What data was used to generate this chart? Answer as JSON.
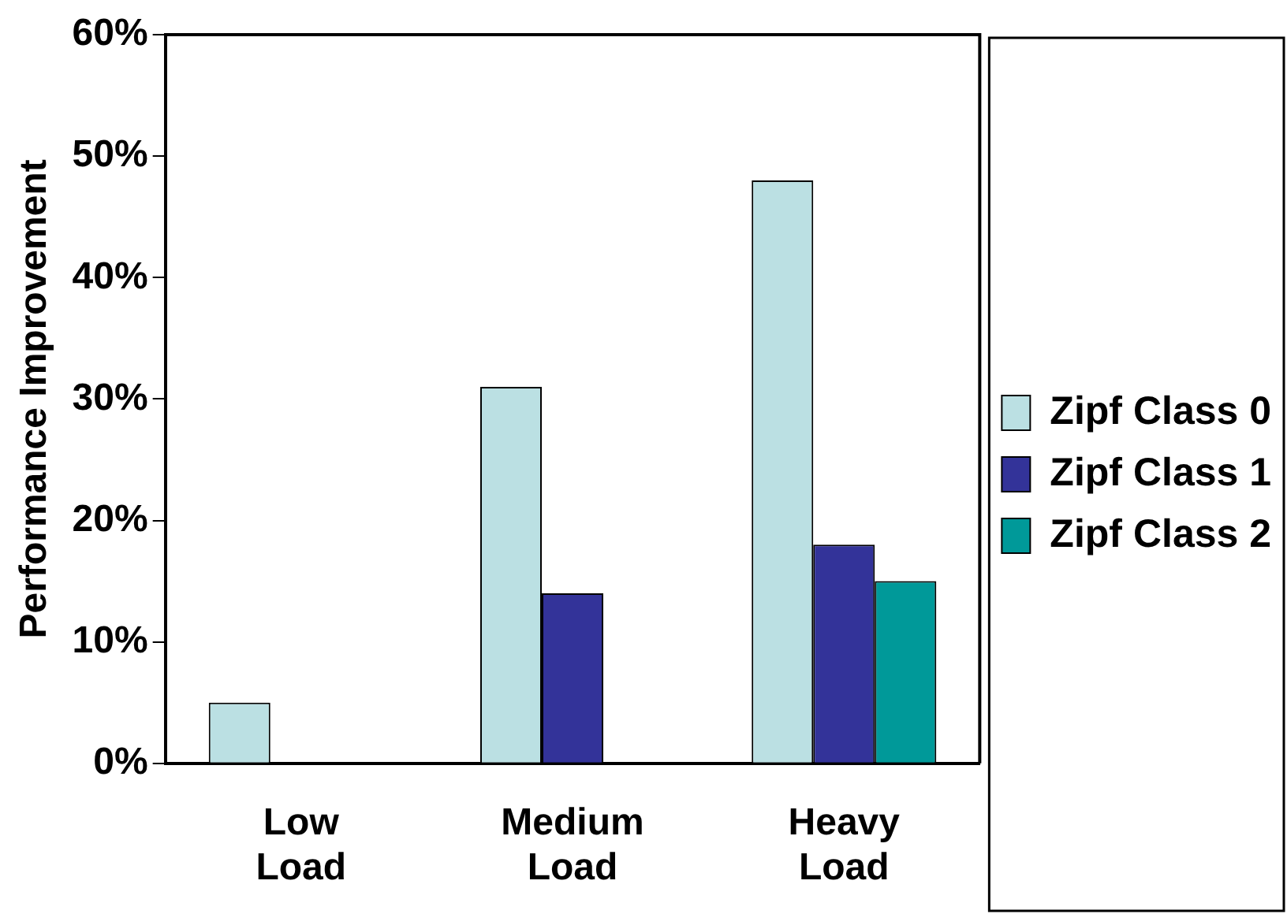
{
  "chart_data": {
    "type": "bar",
    "ylabel": "Performance Improvement",
    "categories": [
      "Low Load",
      "Medium Load",
      "Heavy Load"
    ],
    "series": [
      {
        "name": "Zipf Class 0",
        "color": "#bbe0e3",
        "values": [
          5,
          31,
          48
        ]
      },
      {
        "name": "Zipf Class 1",
        "color": "#333399",
        "values": [
          null,
          14,
          18
        ]
      },
      {
        "name": "Zipf Class 2",
        "color": "#009999",
        "values": [
          null,
          null,
          15
        ]
      }
    ],
    "ylim": [
      0,
      60
    ],
    "yticks": [
      {
        "value": 0,
        "label": "0%"
      },
      {
        "value": 10,
        "label": "10%"
      },
      {
        "value": 20,
        "label": "20%"
      },
      {
        "value": 30,
        "label": "30%"
      },
      {
        "value": 40,
        "label": "40%"
      },
      {
        "value": 50,
        "label": "50%"
      },
      {
        "value": 60,
        "label": "60%"
      }
    ],
    "grid": false,
    "legend": "right"
  }
}
